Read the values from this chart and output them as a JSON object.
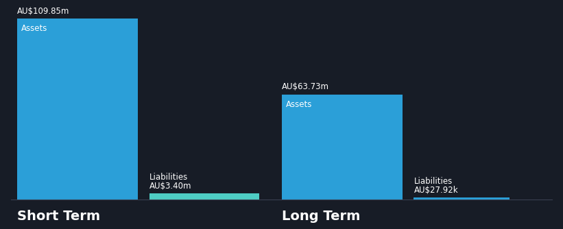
{
  "background_color": "#171c26",
  "short_term": {
    "assets_value": 109.85,
    "assets_label": "AU$109.85m",
    "assets_bar_label": "Assets",
    "assets_color": "#2b9fd8",
    "liabilities_value": 3.4,
    "liabilities_label": "AU$3.40m",
    "liabilities_bar_label": "Liabilities",
    "liabilities_color": "#4ecdc4",
    "group_label": "Short Term"
  },
  "long_term": {
    "assets_value": 63.73,
    "assets_label": "AU$63.73m",
    "assets_bar_label": "Assets",
    "assets_color": "#2b9fd8",
    "liabilities_value": 0.02792,
    "liabilities_label": "AU$27.92k",
    "liabilities_bar_label": "Liabilities",
    "liabilities_color": "#2b9fd8",
    "group_label": "Long Term"
  },
  "text_color": "#ffffff",
  "value_label_fontsize": 8.5,
  "bar_label_fontsize": 8.5,
  "group_label_fontsize": 14
}
